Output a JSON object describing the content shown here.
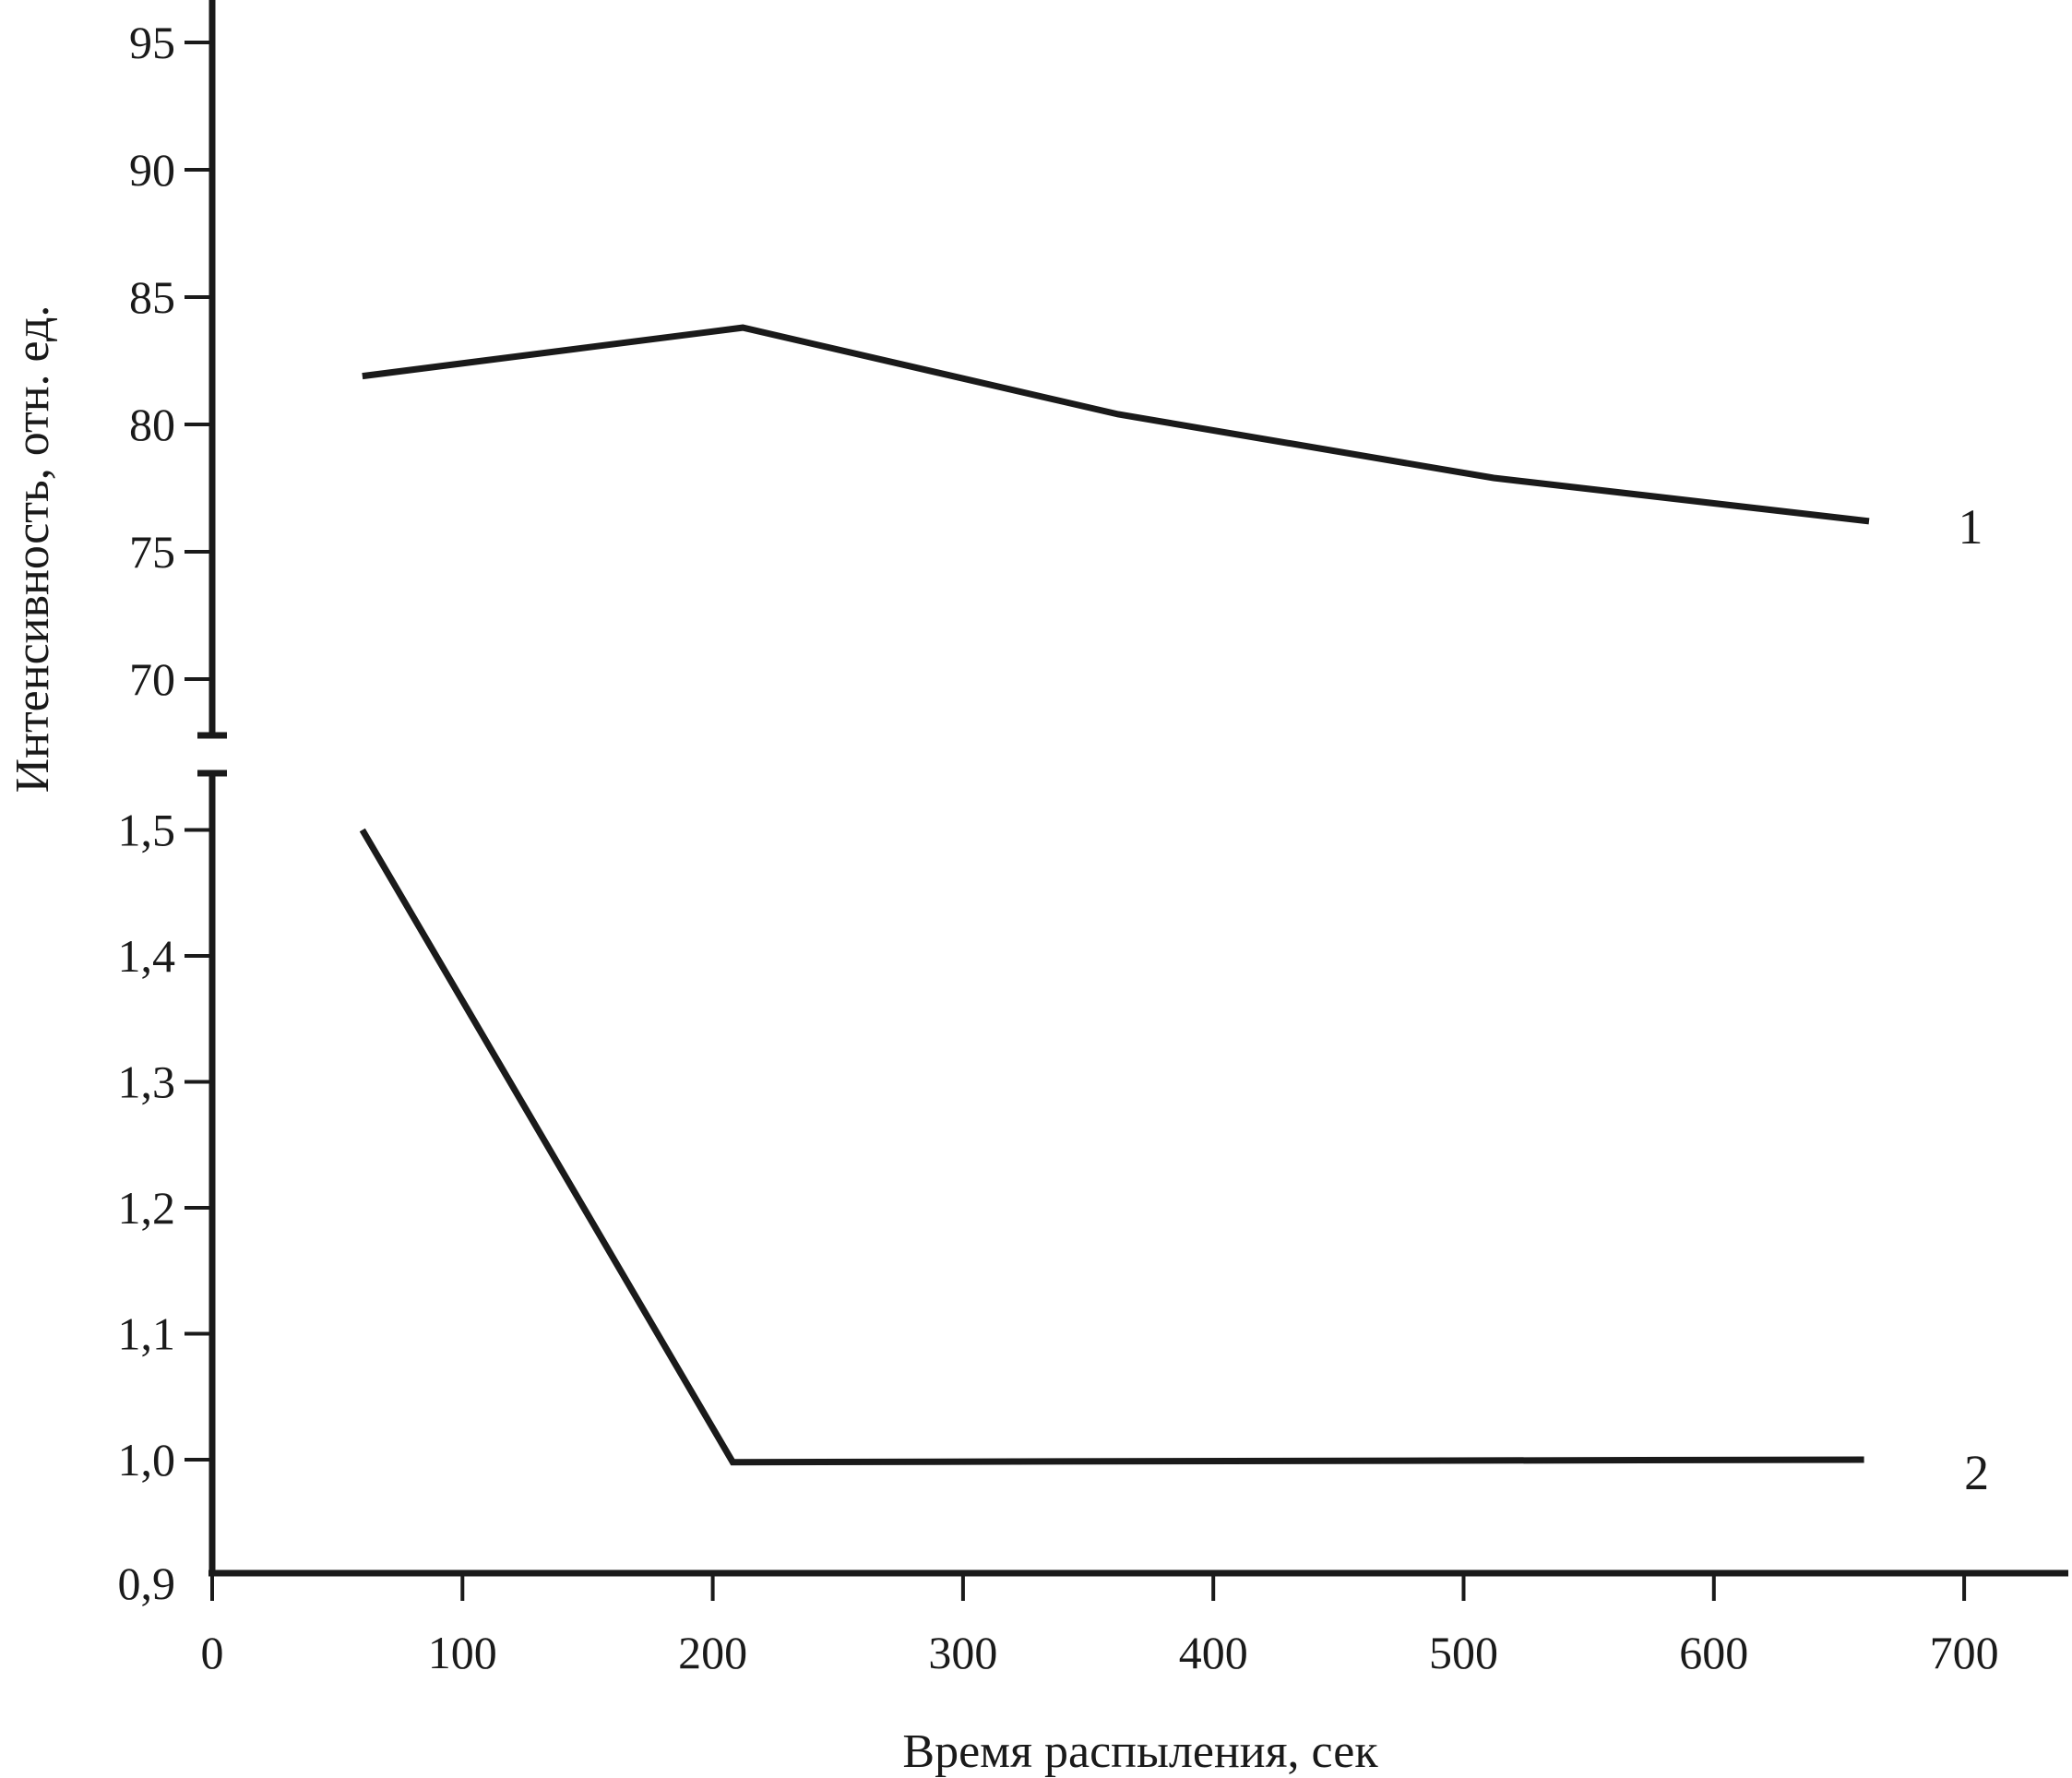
{
  "chart_data": {
    "type": "line",
    "title": "",
    "xlabel": "Время распыления, сек",
    "ylabel": "Интенсивность, отн. ед.",
    "xlim": [
      0,
      740
    ],
    "x_ticks": [
      "0",
      "100",
      "200",
      "300",
      "400",
      "500",
      "600",
      "700"
    ],
    "x_tick_values": [
      0,
      100,
      200,
      300,
      400,
      500,
      600,
      700
    ],
    "axis_break": true,
    "y_upper": {
      "ylim": [
        67.7,
        97
      ],
      "ticks": [
        "70",
        "75",
        "80",
        "85",
        "90",
        "95"
      ],
      "tick_values": [
        70,
        75,
        80,
        85,
        90,
        95
      ]
    },
    "y_lower": {
      "ylim": [
        0.9,
        1.55
      ],
      "ticks": [
        "0,9",
        "1,0",
        "1,1",
        "1,2",
        "1,3",
        "1,4",
        "1,5"
      ],
      "tick_values": [
        0.9,
        1.0,
        1.1,
        1.2,
        1.3,
        1.4,
        1.5
      ]
    },
    "grid": false,
    "legend": "none",
    "series": [
      {
        "label": "1",
        "panel": "upper",
        "x": [
          60,
          212,
          362,
          512,
          662
        ],
        "y": [
          81.9,
          83.8,
          80.4,
          77.9,
          76.2
        ]
      },
      {
        "label": "2",
        "panel": "lower",
        "x": [
          60,
          208,
          660
        ],
        "y": [
          1.5,
          0.998,
          1.0
        ]
      }
    ],
    "line_color": "#1a1a1a"
  }
}
